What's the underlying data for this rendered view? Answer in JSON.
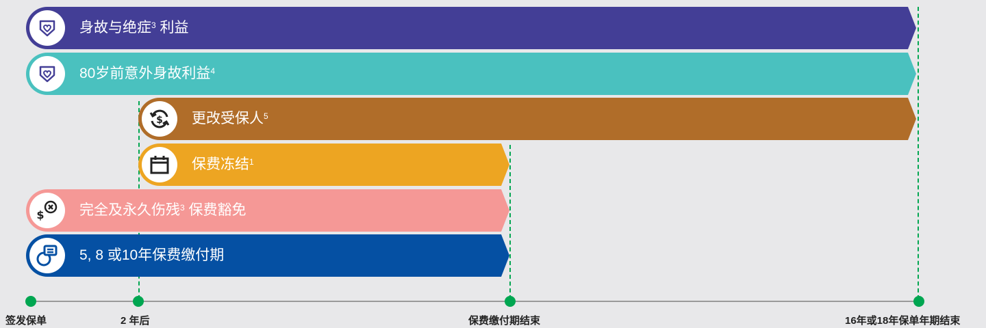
{
  "bars": [
    {
      "label": "身故与绝症",
      "sup": "3",
      "suffix": " 利益",
      "color": "#433e96",
      "icon": "heart-shield-icon"
    },
    {
      "label": "80岁前意外身故利益",
      "sup": "4",
      "suffix": "",
      "color": "#4ac1bf",
      "icon": "heart-shield-icon"
    },
    {
      "label": "更改受保人",
      "sup": "5",
      "suffix": "",
      "color": "#b06d29",
      "icon": "dollar-exchange-icon"
    },
    {
      "label": "保费冻结",
      "sup": "1",
      "suffix": "",
      "color": "#eda522",
      "icon": "calendar-icon"
    },
    {
      "label": "完全及永久伤残",
      "sup": "3",
      "suffix": " 保费豁免",
      "color": "#f59896",
      "icon": "dollar-waiver-icon"
    },
    {
      "label": "5, 8 或10年保费缴付期",
      "sup": "",
      "suffix": "",
      "color": "#0550a3",
      "icon": "payment-card-icon"
    }
  ],
  "timeline": {
    "labels": [
      "签发保单",
      "2 年后",
      "保费缴付期结束",
      "16年或18年保单年期结束"
    ],
    "line_color": "#00a651",
    "axis_color": "#9a9a9a"
  }
}
